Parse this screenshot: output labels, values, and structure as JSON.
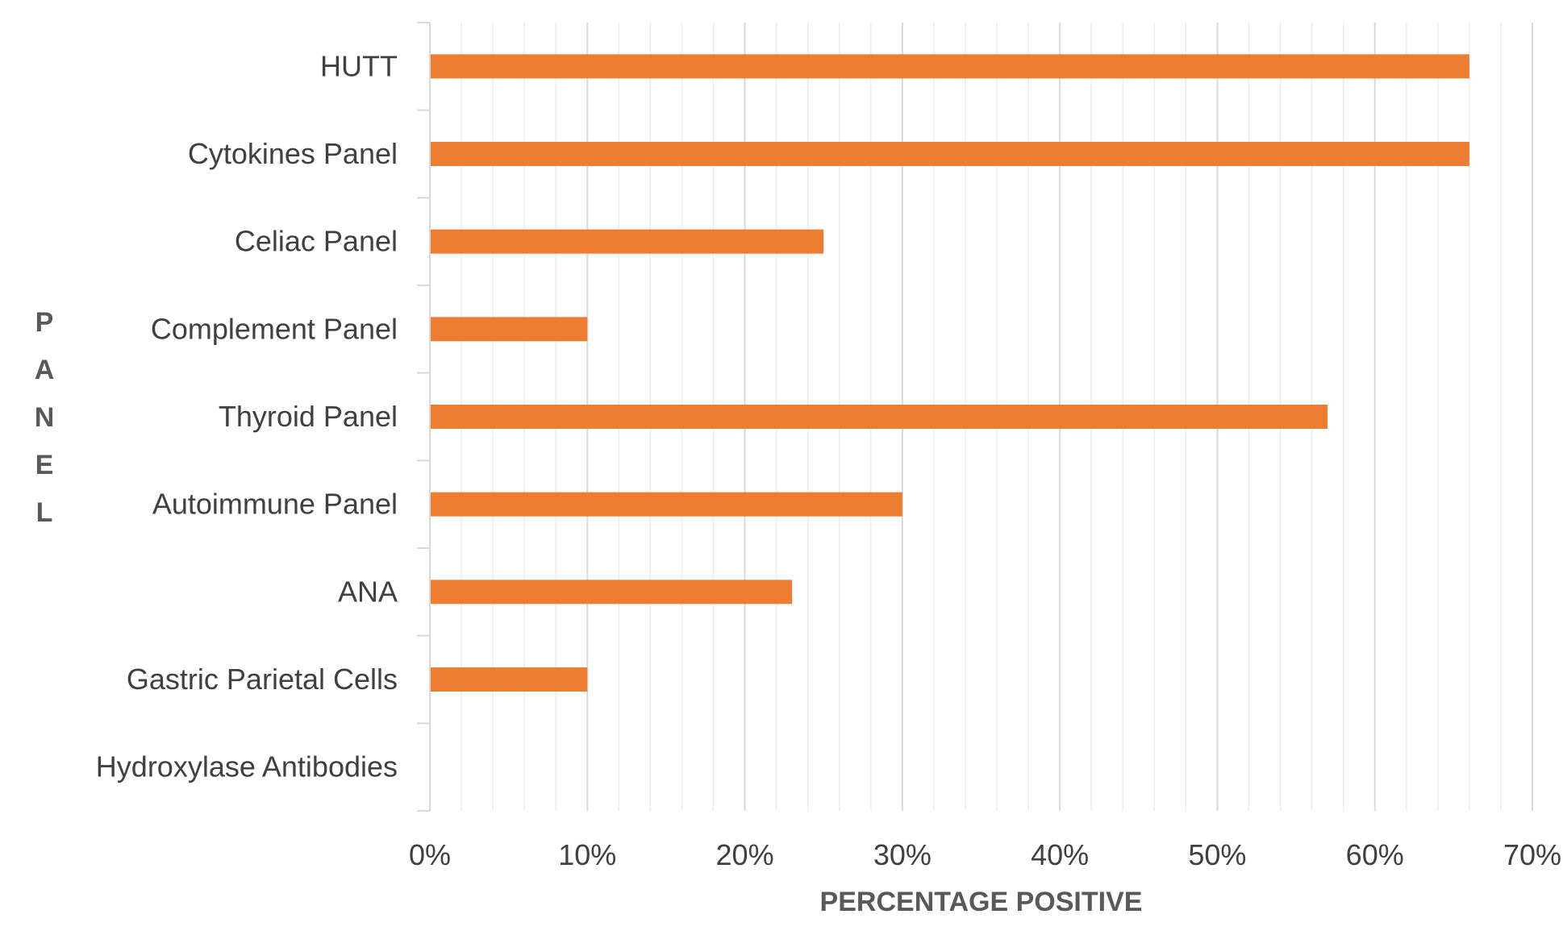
{
  "chart_data": {
    "type": "bar",
    "orientation": "horizontal",
    "title": "",
    "xlabel": "PERCENTAGE POSITIVE",
    "ylabel": "PANEL",
    "categories": [
      "HUTT",
      "Cytokines Panel",
      "Celiac Panel",
      "Complement Panel",
      "Thyroid Panel",
      "Autoimmune Panel",
      "ANA",
      "Gastric Parietal Cells",
      "Hydroxylase Antibodies"
    ],
    "values": [
      66,
      66,
      25,
      10,
      57,
      30,
      23,
      10,
      0
    ],
    "value_unit": "%",
    "xlim": [
      0,
      70
    ],
    "x_ticks": [
      0,
      10,
      20,
      30,
      40,
      50,
      60,
      70
    ],
    "x_tick_labels": [
      "0%",
      "10%",
      "20%",
      "30%",
      "40%",
      "50%",
      "60%",
      "70%"
    ],
    "major_grid": true,
    "minor_grid": true,
    "legend": "none",
    "colors": {
      "bar": "#ED7D31",
      "major_grid": "#D9D9D9",
      "minor_grid": "#EDEDED",
      "axis": "#D9D9D9",
      "text": "#404040",
      "axis_title": "#595959"
    }
  }
}
